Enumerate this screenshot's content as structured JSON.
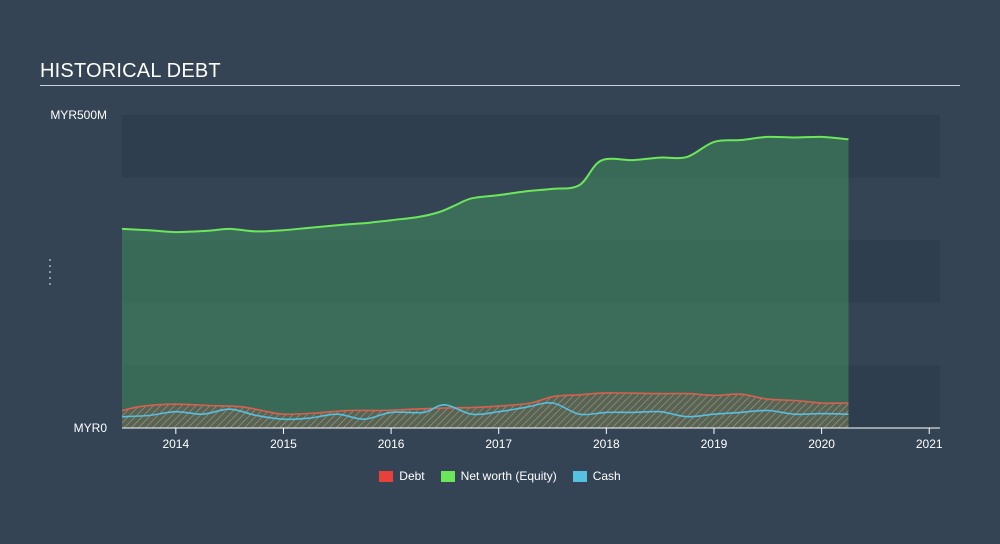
{
  "chart_data": {
    "type": "area",
    "title": "HISTORICAL DEBT",
    "y_tick_labels": [
      "MYR500M",
      "MYR0"
    ],
    "x_tick_labels": [
      "2014",
      "2015",
      "2016",
      "2017",
      "2018",
      "2019",
      "2020",
      "2021"
    ],
    "x_ticks": [
      2014,
      2015,
      2016,
      2017,
      2018,
      2019,
      2020,
      2021
    ],
    "xlim": [
      2013.5,
      2021.1
    ],
    "ylim": [
      0,
      500
    ],
    "grid": true,
    "legend_position": "bottom",
    "series": [
      {
        "name": "Debt",
        "color": "#e8413a",
        "x": [
          2013.5,
          2013.7,
          2014.0,
          2014.3,
          2014.6,
          2014.8,
          2015.0,
          2015.3,
          2015.6,
          2015.9,
          2016.2,
          2016.5,
          2016.8,
          2017.0,
          2017.3,
          2017.5,
          2017.75,
          2018.0,
          2018.5,
          2018.75,
          2019.0,
          2019.25,
          2019.5,
          2019.75,
          2020.0,
          2020.25
        ],
        "values": [
          28,
          35,
          38,
          36,
          34,
          28,
          22,
          24,
          28,
          28,
          30,
          32,
          33,
          35,
          40,
          50,
          53,
          56,
          55,
          55,
          52,
          54,
          46,
          44,
          40,
          40
        ]
      },
      {
        "name": "Net worth (Equity)",
        "color": "#6ce65a",
        "x": [
          2013.5,
          2013.75,
          2014.0,
          2014.3,
          2014.5,
          2014.75,
          2015.0,
          2015.25,
          2015.5,
          2015.8,
          2016.0,
          2016.25,
          2016.45,
          2016.6,
          2016.75,
          2017.0,
          2017.25,
          2017.5,
          2017.75,
          2017.95,
          2018.25,
          2018.5,
          2018.75,
          2019.0,
          2019.25,
          2019.5,
          2019.75,
          2020.0,
          2020.25
        ],
        "values": [
          318,
          316,
          313,
          315,
          318,
          314,
          316,
          320,
          324,
          328,
          332,
          337,
          345,
          356,
          367,
          372,
          378,
          382,
          388,
          427,
          428,
          432,
          433,
          457,
          460,
          465,
          464,
          465,
          461
        ]
      },
      {
        "name": "Cash",
        "color": "#56c0e0",
        "x": [
          2013.5,
          2013.75,
          2014.0,
          2014.25,
          2014.5,
          2014.75,
          2015.0,
          2015.25,
          2015.5,
          2015.75,
          2016.0,
          2016.3,
          2016.5,
          2016.75,
          2017.0,
          2017.25,
          2017.5,
          2017.75,
          2018.0,
          2018.25,
          2018.5,
          2018.75,
          2019.0,
          2019.25,
          2019.5,
          2019.75,
          2020.0,
          2020.25
        ],
        "values": [
          18,
          20,
          26,
          22,
          30,
          20,
          14,
          16,
          22,
          14,
          25,
          25,
          37,
          22,
          26,
          33,
          40,
          22,
          25,
          25,
          26,
          18,
          22,
          25,
          28,
          22,
          23,
          22
        ]
      }
    ]
  },
  "legend": {
    "debt": "Debt",
    "equity": "Net worth (Equity)",
    "cash": "Cash"
  }
}
